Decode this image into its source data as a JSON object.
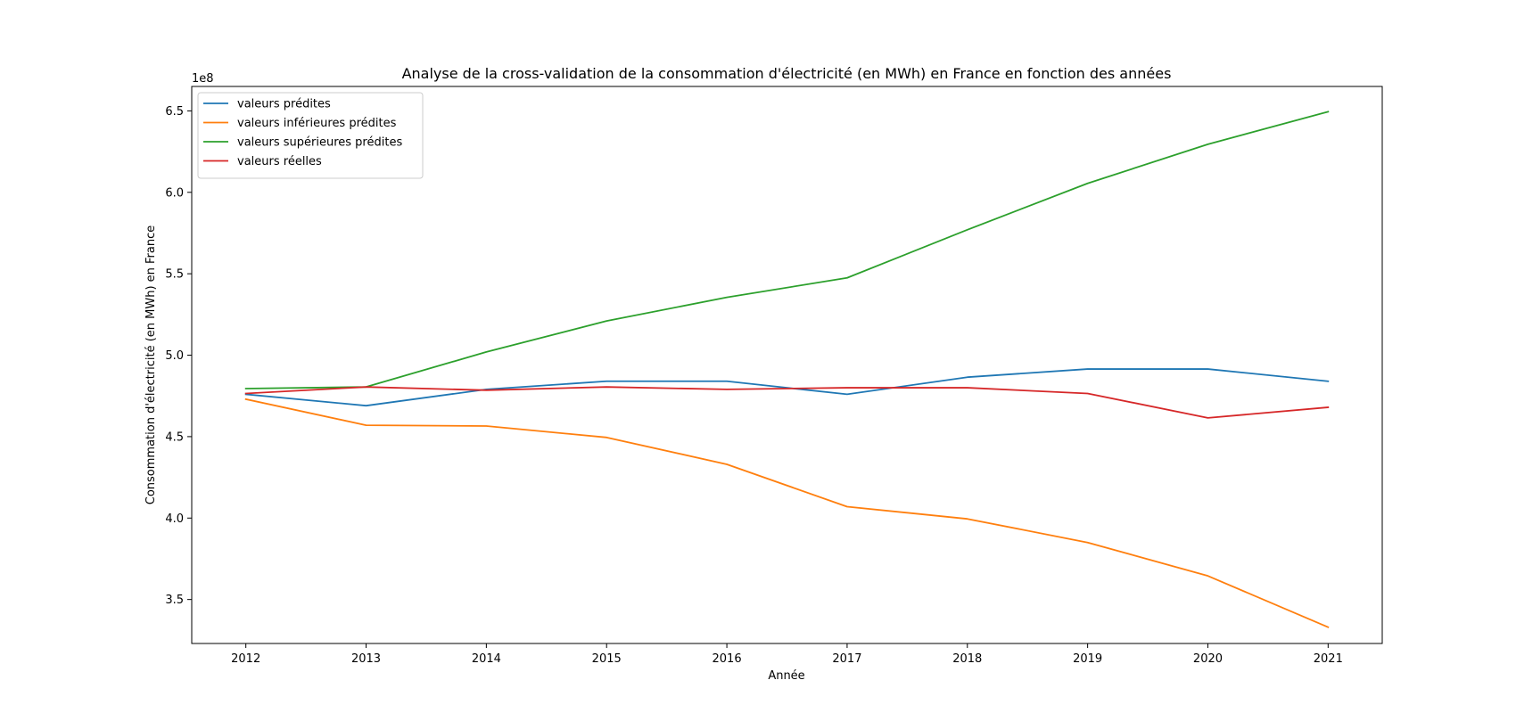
{
  "chart_data": {
    "type": "line",
    "title": "Analyse de la cross-validation de la consommation d'électricité (en MWh) en France en fonction des années",
    "xlabel": "Année",
    "ylabel": "Consommation d'électricité (en MWh) en France",
    "y_offset_label": "1e8",
    "x": [
      2012,
      2013,
      2014,
      2015,
      2016,
      2017,
      2018,
      2019,
      2020,
      2021
    ],
    "x_ticks": [
      "2012",
      "2013",
      "2014",
      "2015",
      "2016",
      "2017",
      "2018",
      "2019",
      "2020",
      "2021"
    ],
    "y_ticks": [
      "3.5",
      "4.0",
      "4.5",
      "5.0",
      "5.5",
      "6.0",
      "6.5"
    ],
    "y_tick_values": [
      3.5,
      4.0,
      4.5,
      5.0,
      5.5,
      6.0,
      6.5
    ],
    "xlim": [
      2011.55,
      2021.45
    ],
    "ylim": [
      3.23,
      6.65
    ],
    "grid": false,
    "legend_position": "top-left",
    "series": [
      {
        "name": "valeurs prédites",
        "color": "#1f77b4",
        "values": [
          4.76,
          4.69,
          4.79,
          4.84,
          4.84,
          4.76,
          4.865,
          4.915,
          4.915,
          4.84
        ]
      },
      {
        "name": "valeurs inférieures prédites",
        "color": "#ff7f0e",
        "values": [
          4.73,
          4.57,
          4.565,
          4.495,
          4.33,
          4.07,
          3.995,
          3.85,
          3.645,
          3.33
        ]
      },
      {
        "name": "valeurs supérieures prédites",
        "color": "#2ca02c",
        "values": [
          4.795,
          4.805,
          5.02,
          5.21,
          5.355,
          5.475,
          5.77,
          6.055,
          6.295,
          6.495
        ]
      },
      {
        "name": "valeurs réelles",
        "color": "#d62728",
        "values": [
          4.765,
          4.805,
          4.785,
          4.805,
          4.79,
          4.8,
          4.8,
          4.765,
          4.615,
          4.68
        ]
      }
    ]
  }
}
